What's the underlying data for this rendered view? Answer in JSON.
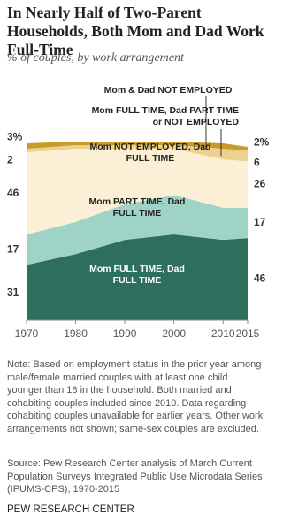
{
  "chart_data": {
    "type": "stacked-area",
    "title": "In Nearly Half of Two-Parent Households, Both Mom and Dad Work Full-Time",
    "subtitle": "% of couples, by work arrangement",
    "x": [
      1970,
      1980,
      1990,
      2000,
      2010,
      2015
    ],
    "xlim": [
      1970,
      2015
    ],
    "xticks": [
      1970,
      1980,
      1990,
      2000,
      2010,
      2015
    ],
    "ylim": [
      0,
      100
    ],
    "series": [
      {
        "name": "Mom FULL TIME, Dad FULL TIME",
        "color": "#2d6e5d",
        "values": [
          31,
          37,
          45,
          48,
          45,
          46
        ],
        "value_labels": [
          "31",
          null,
          null,
          null,
          null,
          "46"
        ]
      },
      {
        "name": "Mom PART TIME, Dad FULL TIME",
        "color": "#9fd3c5",
        "values": [
          17,
          18,
          20,
          22,
          18,
          17
        ],
        "value_labels": [
          "17",
          null,
          null,
          null,
          null,
          "17"
        ]
      },
      {
        "name": "Mom NOT EMPLOYED, Dad FULL TIME",
        "color": "#fbf0d6",
        "values": [
          46,
          41,
          31,
          26,
          27,
          26
        ],
        "value_labels": [
          "46",
          null,
          null,
          null,
          null,
          "26"
        ]
      },
      {
        "name": "Mom FULL TIME, Dad PART TIME or NOT EMPLOYED",
        "color": "#ecd18f",
        "values": [
          2,
          2,
          2,
          2,
          6,
          6
        ],
        "value_labels": [
          "2",
          null,
          null,
          null,
          null,
          "6"
        ]
      },
      {
        "name": "Mom & Dad NOT EMPLOYED",
        "color": "#c89b2b",
        "values": [
          3,
          2,
          2,
          2,
          3,
          2
        ],
        "value_labels": [
          "3%",
          null,
          null,
          null,
          null,
          "2%"
        ]
      }
    ],
    "note": "Note: Based on employment status in the prior year among male/female married couples with at least one child younger than 18 in the household. Both married and cohabiting couples included since 2010. Data regarding cohabiting couples unavailable for earlier years. Other work arrangements not shown; same-sex couples are excluded.",
    "source": "Source: Pew Research Center analysis of March Current Population Surveys Integrated Public Use Microdata Series (IPUMS-CPS), 1970-2015",
    "credit": "PEW RESEARCH CENTER"
  }
}
